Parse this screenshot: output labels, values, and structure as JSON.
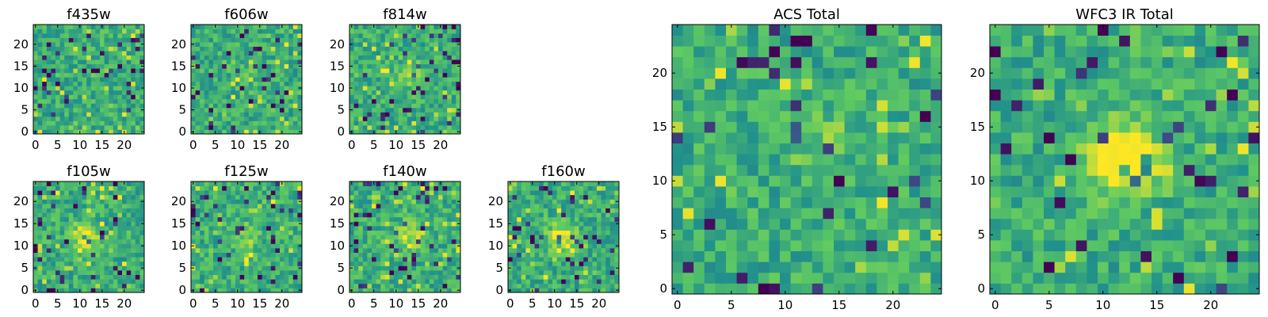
{
  "chart_data": [
    {
      "type": "heatmap",
      "title": "f435w",
      "xticks": [
        0,
        5,
        10,
        15,
        20
      ],
      "yticks": [
        0,
        5,
        10,
        15,
        20
      ],
      "xlim": [
        0,
        25
      ],
      "ylim": [
        0,
        25
      ],
      "grid": false,
      "colormap": [
        "#440154",
        "#3b528b",
        "#21918c",
        "#5ec962",
        "#fde725"
      ],
      "value_range": [
        0,
        1
      ],
      "hot_spot": {
        "x": 12,
        "y": 13,
        "strength": 0.0
      }
    },
    {
      "type": "heatmap",
      "title": "f606w",
      "xticks": [
        0,
        5,
        10,
        15,
        20
      ],
      "yticks": [
        0,
        5,
        10,
        15,
        20
      ],
      "xlim": [
        0,
        25
      ],
      "ylim": [
        0,
        25
      ],
      "grid": false,
      "colormap": [
        "#440154",
        "#3b528b",
        "#21918c",
        "#5ec962",
        "#fde725"
      ],
      "value_range": [
        0,
        1
      ],
      "hot_spot": {
        "x": 12,
        "y": 13,
        "strength": 0.05
      }
    },
    {
      "type": "heatmap",
      "title": "f814w",
      "xticks": [
        0,
        5,
        10,
        15,
        20
      ],
      "yticks": [
        0,
        5,
        10,
        15,
        20
      ],
      "xlim": [
        0,
        25
      ],
      "ylim": [
        0,
        25
      ],
      "grid": false,
      "colormap": [
        "#440154",
        "#3b528b",
        "#21918c",
        "#5ec962",
        "#fde725"
      ],
      "value_range": [
        0,
        1
      ],
      "hot_spot": {
        "x": 13,
        "y": 13,
        "strength": 0.15
      }
    },
    {
      "type": "heatmap",
      "title": "f105w",
      "xticks": [
        0,
        5,
        10,
        15,
        20
      ],
      "yticks": [
        0,
        5,
        10,
        15,
        20
      ],
      "xlim": [
        0,
        25
      ],
      "ylim": [
        0,
        25
      ],
      "grid": false,
      "colormap": [
        "#440154",
        "#3b528b",
        "#21918c",
        "#5ec962",
        "#fde725"
      ],
      "value_range": [
        0,
        1
      ],
      "hot_spot": {
        "x": 11,
        "y": 12,
        "strength": 0.35
      }
    },
    {
      "type": "heatmap",
      "title": "f125w",
      "xticks": [
        0,
        5,
        10,
        15,
        20
      ],
      "yticks": [
        0,
        5,
        10,
        15,
        20
      ],
      "xlim": [
        0,
        25
      ],
      "ylim": [
        0,
        25
      ],
      "grid": false,
      "colormap": [
        "#440154",
        "#3b528b",
        "#21918c",
        "#5ec962",
        "#fde725"
      ],
      "value_range": [
        0,
        1
      ],
      "hot_spot": {
        "x": 12,
        "y": 12,
        "strength": 0.2
      }
    },
    {
      "type": "heatmap",
      "title": "f140w",
      "xticks": [
        0,
        5,
        10,
        15,
        20
      ],
      "yticks": [
        0,
        5,
        10,
        15,
        20
      ],
      "xlim": [
        0,
        25
      ],
      "ylim": [
        0,
        25
      ],
      "grid": false,
      "colormap": [
        "#440154",
        "#3b528b",
        "#21918c",
        "#5ec962",
        "#fde725"
      ],
      "value_range": [
        0,
        1
      ],
      "hot_spot": {
        "x": 13,
        "y": 12,
        "strength": 0.3
      }
    },
    {
      "type": "heatmap",
      "title": "f160w",
      "xticks": [
        0,
        5,
        10,
        15,
        20
      ],
      "yticks": [
        0,
        5,
        10,
        15,
        20
      ],
      "xlim": [
        0,
        25
      ],
      "ylim": [
        0,
        25
      ],
      "grid": false,
      "colormap": [
        "#440154",
        "#3b528b",
        "#21918c",
        "#5ec962",
        "#fde725"
      ],
      "value_range": [
        0,
        1
      ],
      "hot_spot": {
        "x": 12,
        "y": 12,
        "strength": 0.35
      }
    },
    {
      "type": "heatmap",
      "title": "ACS Total",
      "xticks": [
        0,
        5,
        10,
        15,
        20
      ],
      "yticks": [
        0,
        5,
        10,
        15,
        20
      ],
      "xlim": [
        0,
        25
      ],
      "ylim": [
        0,
        25
      ],
      "grid": false,
      "colormap": [
        "#440154",
        "#3b528b",
        "#21918c",
        "#5ec962",
        "#fde725"
      ],
      "value_range": [
        0,
        1
      ],
      "hot_spot": {
        "x": 13,
        "y": 14,
        "strength": 0.15
      }
    },
    {
      "type": "heatmap",
      "title": "WFC3 IR Total",
      "xticks": [
        0,
        5,
        10,
        15,
        20
      ],
      "yticks": [
        0,
        5,
        10,
        15,
        20
      ],
      "xlim": [
        0,
        25
      ],
      "ylim": [
        0,
        25
      ],
      "grid": false,
      "colormap": [
        "#440154",
        "#3b528b",
        "#21918c",
        "#5ec962",
        "#fde725"
      ],
      "value_range": [
        0,
        1
      ],
      "hot_spot": {
        "x": 12,
        "y": 12,
        "strength": 0.55
      }
    }
  ]
}
